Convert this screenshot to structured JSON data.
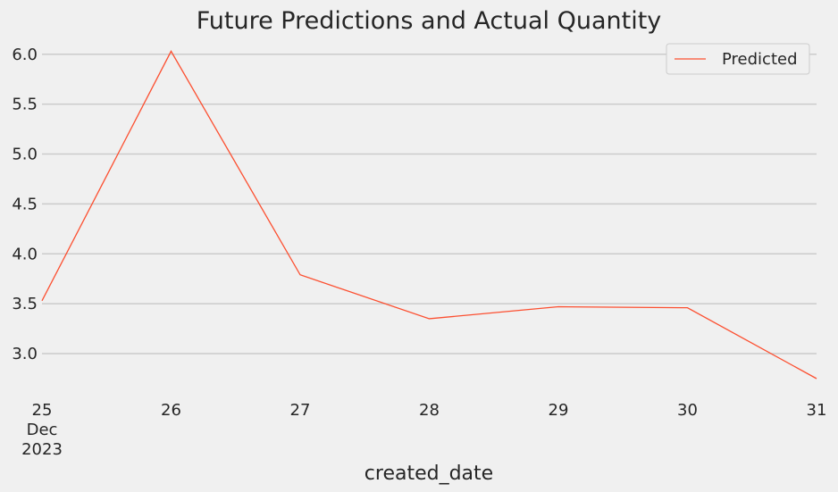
{
  "chart_data": {
    "type": "line",
    "title": "Future Predictions and Actual Quantity",
    "xlabel": "created_date",
    "ylabel": "",
    "x": [
      "2023-12-25",
      "2023-12-26",
      "2023-12-27",
      "2023-12-28",
      "2023-12-29",
      "2023-12-30",
      "2023-12-31"
    ],
    "x_tick_labels": [
      "25",
      "26",
      "27",
      "28",
      "29",
      "30",
      "31"
    ],
    "x_tick_sublabel": [
      "Dec",
      "2023"
    ],
    "y_ticks": [
      "3.0",
      "3.5",
      "4.0",
      "4.5",
      "5.0",
      "5.5",
      "6.0"
    ],
    "ylim": [
      2.75,
      6.15
    ],
    "grid": "horizontal",
    "legend": "top-right",
    "series": [
      {
        "name": "Predicted",
        "color": "#fc4f30",
        "values": [
          3.53,
          6.03,
          3.79,
          3.35,
          3.47,
          3.46,
          2.75
        ]
      }
    ]
  }
}
